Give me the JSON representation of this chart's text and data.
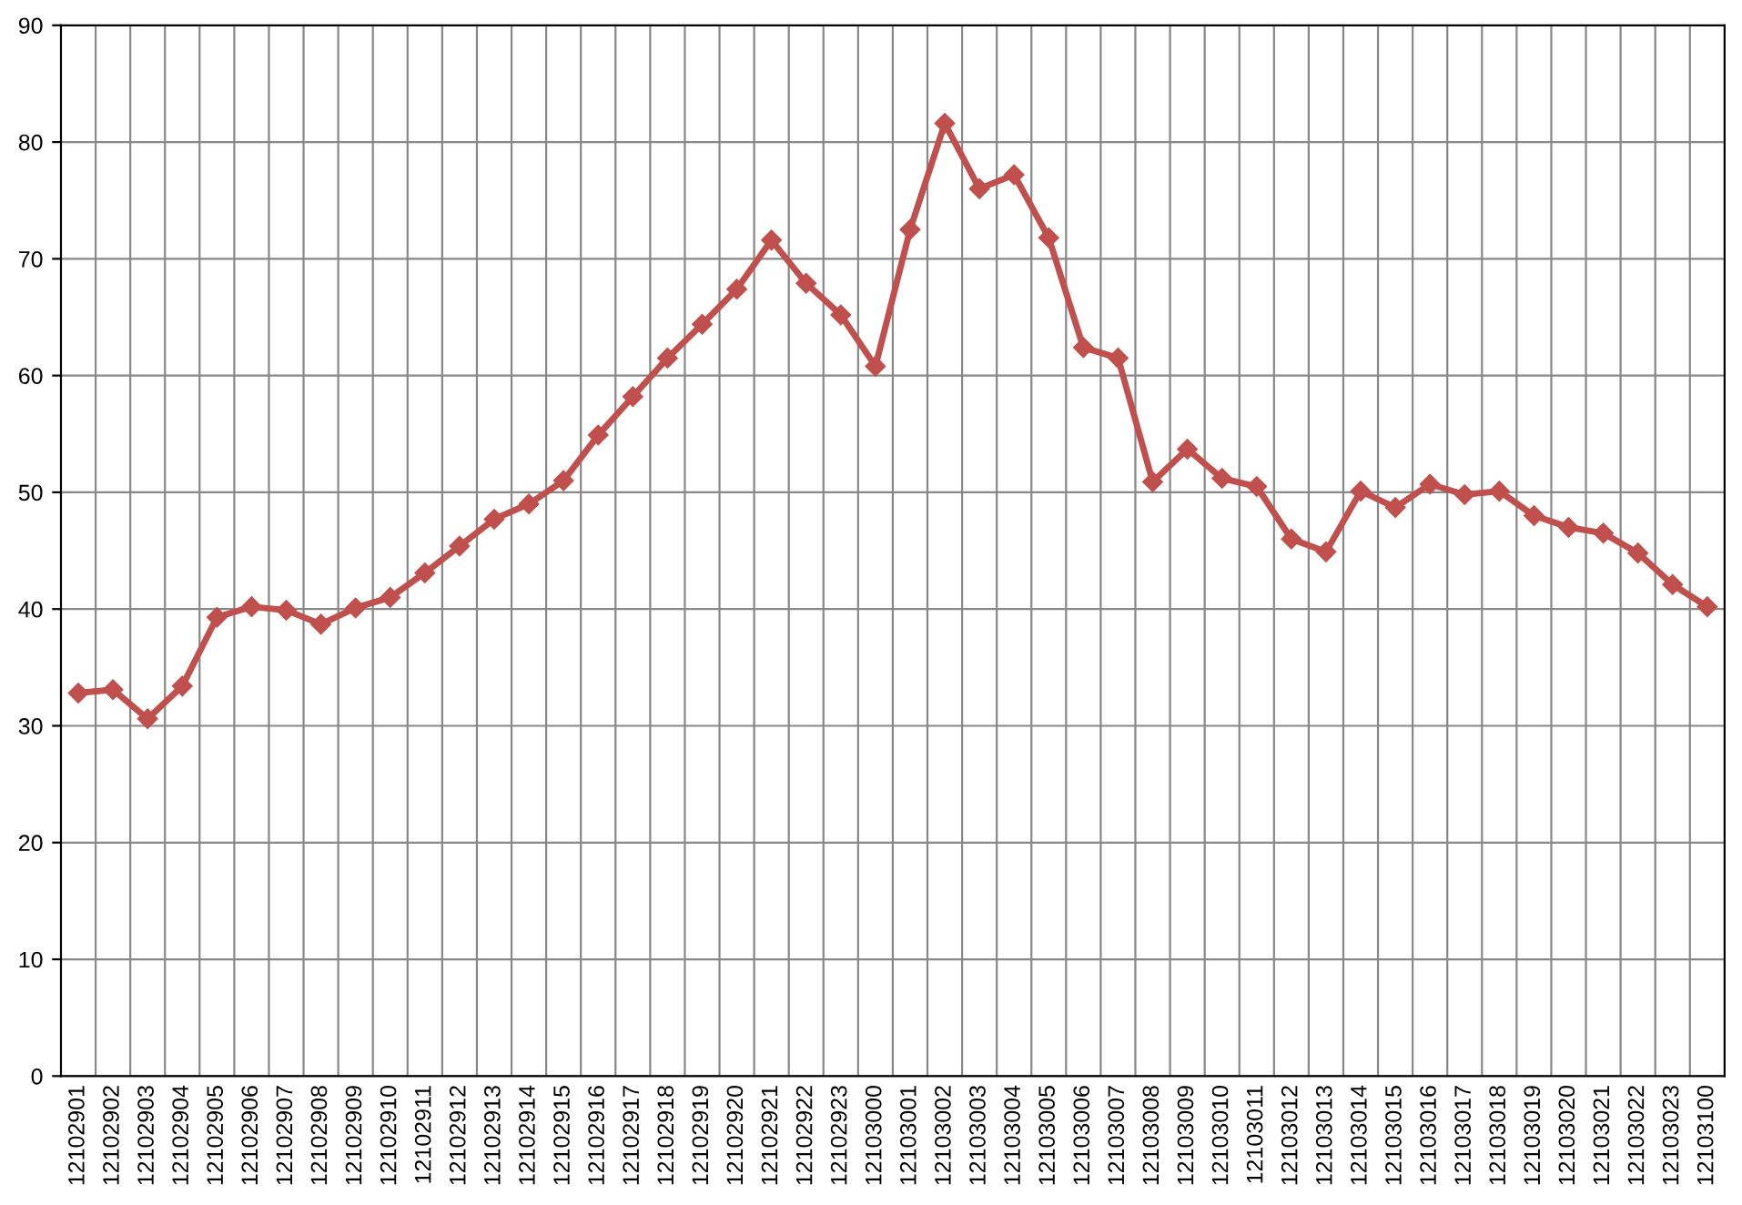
{
  "chart_data": {
    "type": "line",
    "categories": [
      "12102901",
      "12102902",
      "12102903",
      "12102904",
      "12102905",
      "12102906",
      "12102907",
      "12102908",
      "12102909",
      "12102910",
      "12102911",
      "12102912",
      "12102913",
      "12102914",
      "12102915",
      "12102916",
      "12102917",
      "12102918",
      "12102919",
      "12102920",
      "12102921",
      "12102922",
      "12102923",
      "12103000",
      "12103001",
      "12103002",
      "12103003",
      "12103004",
      "12103005",
      "12103006",
      "12103007",
      "12103008",
      "12103009",
      "12103010",
      "12103011",
      "12103012",
      "12103013",
      "12103014",
      "12103015",
      "12103016",
      "12103017",
      "12103018",
      "12103019",
      "12103020",
      "12103021",
      "12103022",
      "12103023",
      "12103100"
    ],
    "series": [
      {
        "color": "#c0504d",
        "values": [
          32.8,
          33.1,
          30.6,
          33.4,
          39.3,
          40.2,
          39.9,
          38.7,
          40.1,
          41.0,
          43.1,
          45.4,
          47.7,
          49.0,
          51.0,
          54.9,
          58.2,
          61.5,
          64.4,
          67.4,
          71.6,
          67.9,
          65.2,
          60.8,
          72.5,
          81.6,
          76.0,
          77.2,
          71.8,
          62.4,
          61.5,
          50.9,
          53.7,
          51.2,
          50.5,
          46.0,
          44.9,
          50.1,
          48.7,
          50.7,
          49.8,
          50.1,
          48.0,
          47.0,
          46.5,
          44.8,
          42.1,
          40.2
        ]
      }
    ],
    "ylim": [
      0,
      90
    ],
    "yticks": [
      0,
      10,
      20,
      30,
      40,
      50,
      60,
      70,
      80,
      90
    ],
    "grid": true,
    "marker": "diamond",
    "line_style": "solid",
    "legend": false
  }
}
